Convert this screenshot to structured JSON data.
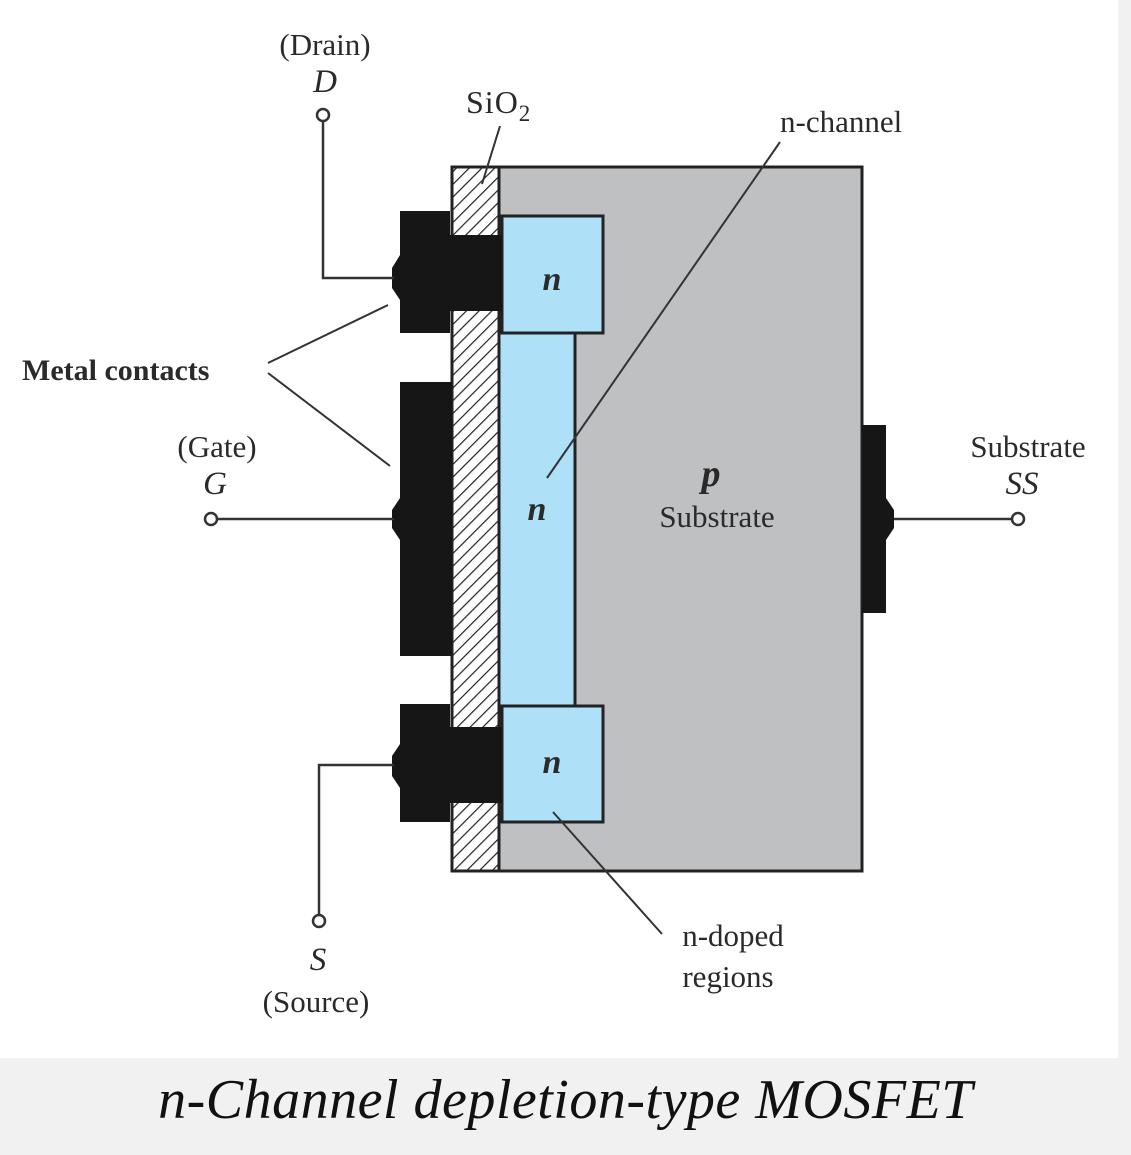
{
  "diagram": {
    "labels": {
      "drain_name": "(Drain)",
      "drain_symbol": "D",
      "sio2_base": "SiO",
      "sio2_sub": "2",
      "n_channel": "n-channel",
      "metal_contacts": "Metal contacts",
      "gate_name": "(Gate)",
      "gate_symbol": "G",
      "n_top": "n",
      "n_channel_region": "n",
      "n_bottom": "n",
      "p_letter": "p",
      "p_substrate": "Substrate",
      "substrate_name": "Substrate",
      "substrate_symbol": "SS",
      "source_symbol": "S",
      "source_name": "(Source)",
      "n_doped_line1": "n-doped",
      "n_doped_line2": "regions"
    },
    "colors": {
      "substrate": "#bfc0c2",
      "n_region": "#aee0f7",
      "metal": "#161616",
      "wire": "#333333"
    }
  },
  "caption": "n-Channel depletion-type MOSFET"
}
